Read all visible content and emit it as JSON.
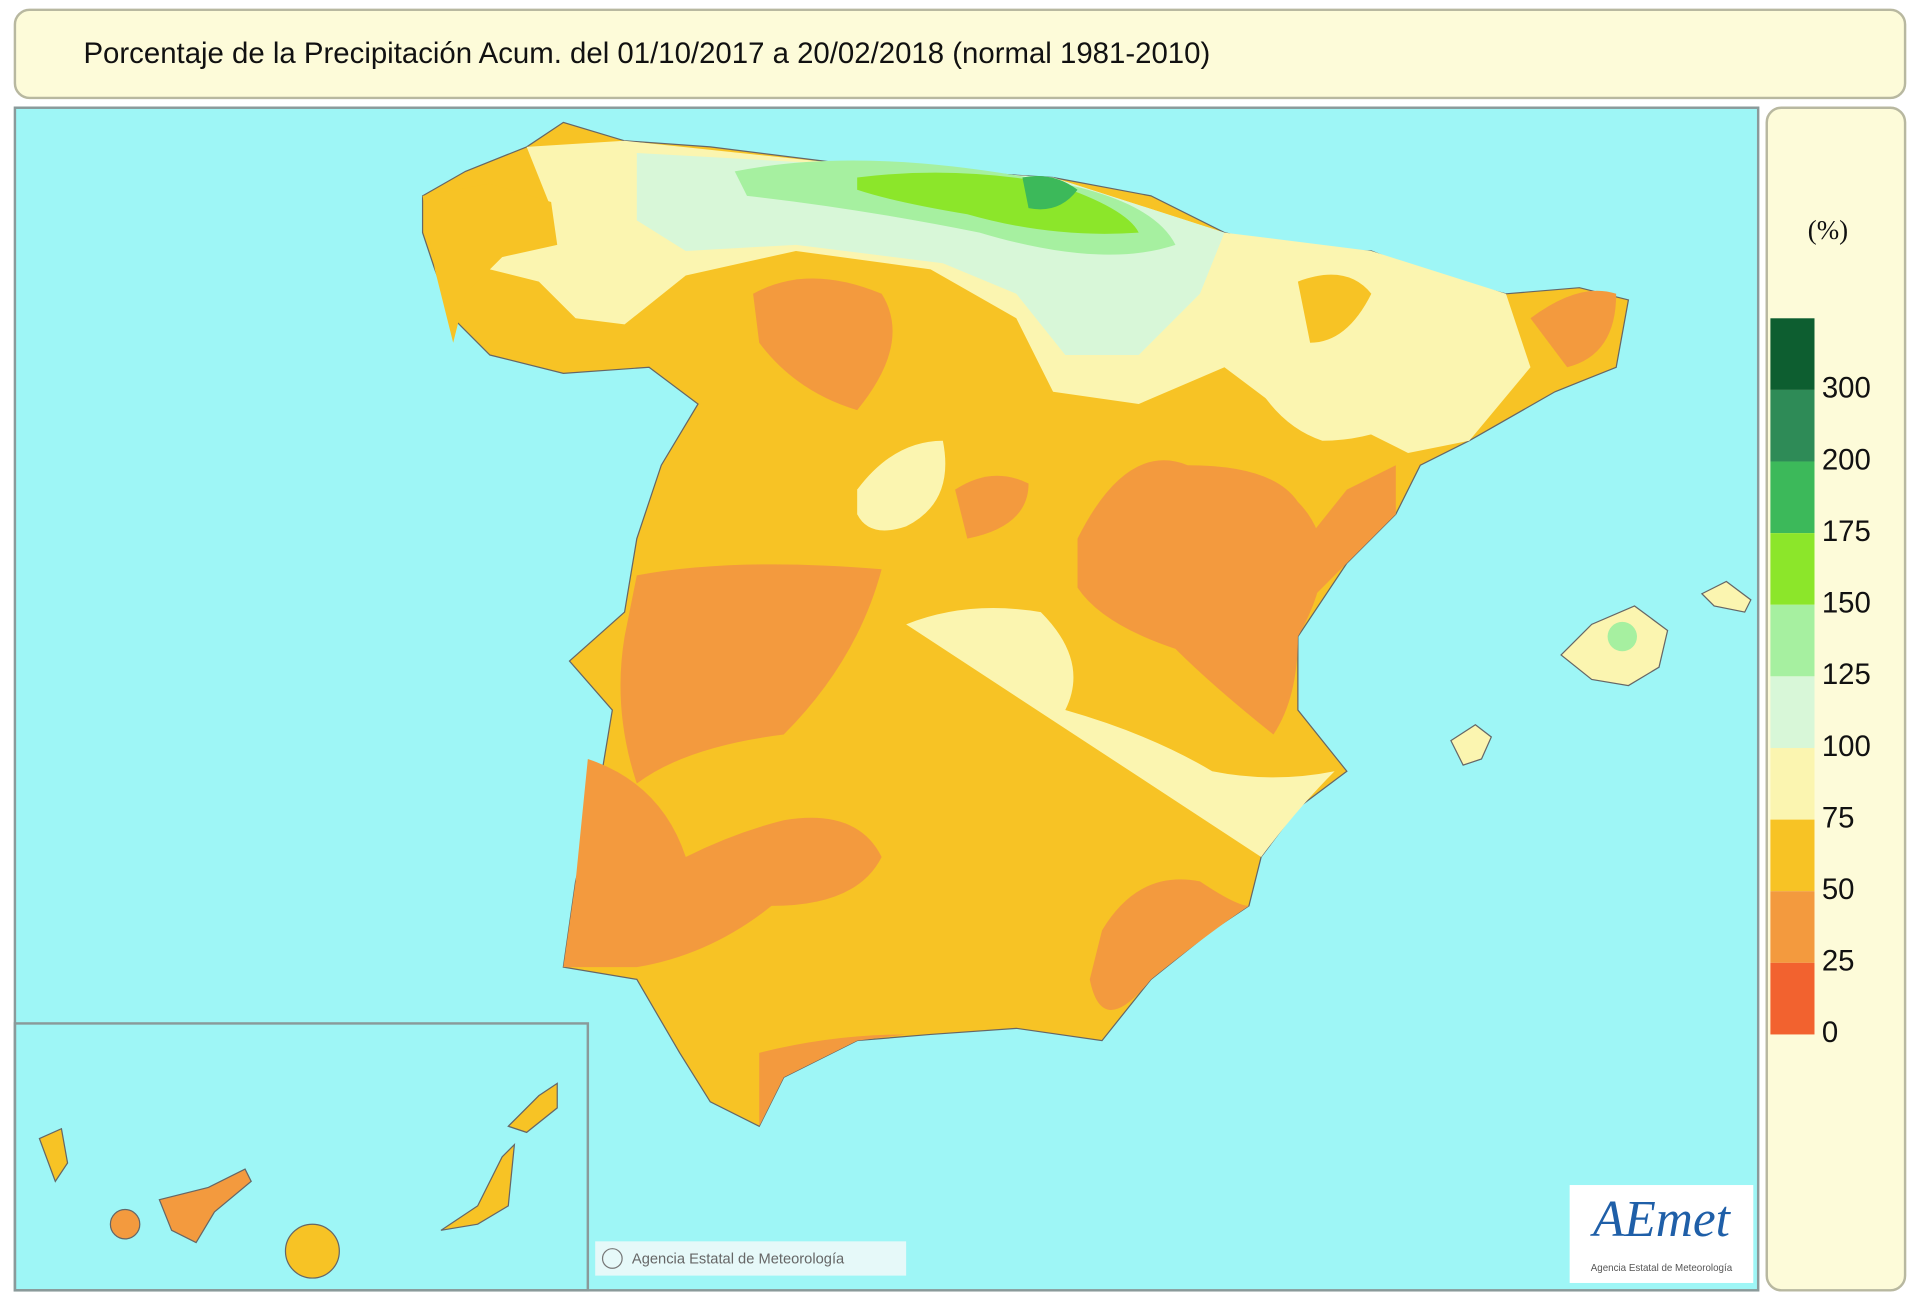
{
  "header": {
    "title": "Porcentaje de la Precipitación Acum. del 01/10/2017 a 20/02/2018 (normal 1981-2010)"
  },
  "legend": {
    "unit": "(%)",
    "classes": [
      {
        "label": "300",
        "color": "#0d5e30"
      },
      {
        "label": "200",
        "color": "#2e8b57"
      },
      {
        "label": "175",
        "color": "#3cb95a"
      },
      {
        "label": "150",
        "color": "#8ce62a"
      },
      {
        "label": "125",
        "color": "#a6f0a0"
      },
      {
        "label": "100",
        "color": "#d8f7d8"
      },
      {
        "label": "75",
        "color": "#fbf5b0"
      },
      {
        "label": "50",
        "color": "#f7c325"
      },
      {
        "label": "25",
        "color": "#f39a3e"
      },
      {
        "label": "0",
        "color": "#f2622f"
      }
    ]
  },
  "credit": "Agencia Estatal de Meteorología",
  "logo": {
    "name": "AEmet",
    "subtitle": "Agencia Estatal de Meteorología"
  }
}
